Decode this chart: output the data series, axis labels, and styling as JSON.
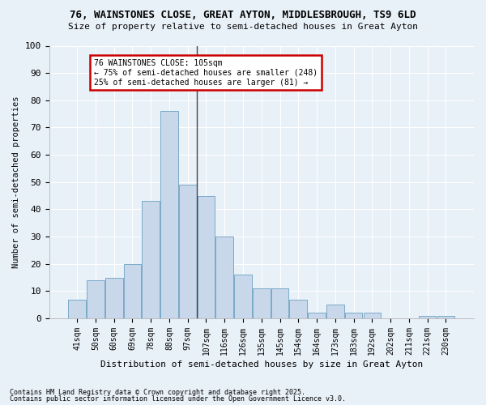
{
  "title1": "76, WAINSTONES CLOSE, GREAT AYTON, MIDDLESBROUGH, TS9 6LD",
  "title2": "Size of property relative to semi-detached houses in Great Ayton",
  "xlabel": "Distribution of semi-detached houses by size in Great Ayton",
  "ylabel": "Number of semi-detached properties",
  "categories": [
    "41sqm",
    "50sqm",
    "60sqm",
    "69sqm",
    "78sqm",
    "88sqm",
    "97sqm",
    "107sqm",
    "116sqm",
    "126sqm",
    "135sqm",
    "145sqm",
    "154sqm",
    "164sqm",
    "173sqm",
    "183sqm",
    "192sqm",
    "202sqm",
    "211sqm",
    "221sqm",
    "230sqm"
  ],
  "values": [
    7,
    14,
    15,
    20,
    43,
    76,
    49,
    45,
    30,
    16,
    11,
    11,
    7,
    2,
    5,
    2,
    2,
    0,
    0,
    1,
    1
  ],
  "bar_color": "#c8d8ea",
  "bar_edge_color": "#7aaac8",
  "vline_color": "#444444",
  "annotation_title": "76 WAINSTONES CLOSE: 105sqm",
  "annotation_line1": "← 75% of semi-detached houses are smaller (248)",
  "annotation_line2": "25% of semi-detached houses are larger (81) →",
  "annotation_box_color": "#ffffff",
  "annotation_box_edge": "#cc0000",
  "ylim": [
    0,
    100
  ],
  "yticks": [
    0,
    10,
    20,
    30,
    40,
    50,
    60,
    70,
    80,
    90,
    100
  ],
  "background_color": "#e8f0f8",
  "grid_color": "#ffffff",
  "footnote1": "Contains HM Land Registry data © Crown copyright and database right 2025.",
  "footnote2": "Contains public sector information licensed under the Open Government Licence v3.0."
}
